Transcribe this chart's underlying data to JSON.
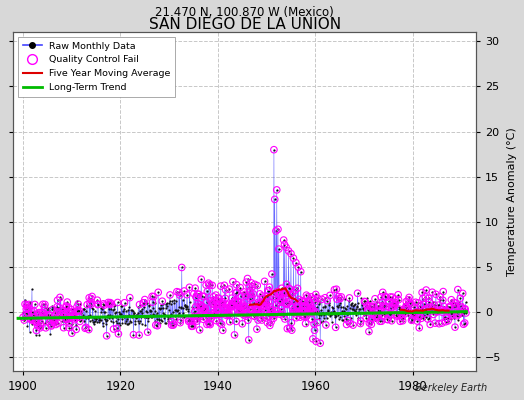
{
  "title": "SAN DIEGO DE LA UNION",
  "subtitle": "21.470 N, 100.870 W (Mexico)",
  "ylabel_right": "Temperature Anomaly (°C)",
  "attribution": "Berkeley Earth",
  "xlim": [
    1898,
    1993
  ],
  "ylim": [
    -6.5,
    31
  ],
  "yticks_left": [],
  "yticks_right": [
    -5,
    0,
    5,
    10,
    15,
    20,
    25,
    30
  ],
  "xticks": [
    1900,
    1920,
    1940,
    1960,
    1980
  ],
  "plot_bg_color": "#ffffff",
  "fig_bg_color": "#d8d8d8",
  "grid_color": "#c8c8c8",
  "raw_line_color": "#4444ff",
  "raw_marker_color": "#111111",
  "qc_marker_color": "#ff00ff",
  "moving_avg_color": "#dd0000",
  "trend_color": "#00bb00",
  "seed": 12345,
  "year_start": 1899.5,
  "year_end": 1990.5
}
